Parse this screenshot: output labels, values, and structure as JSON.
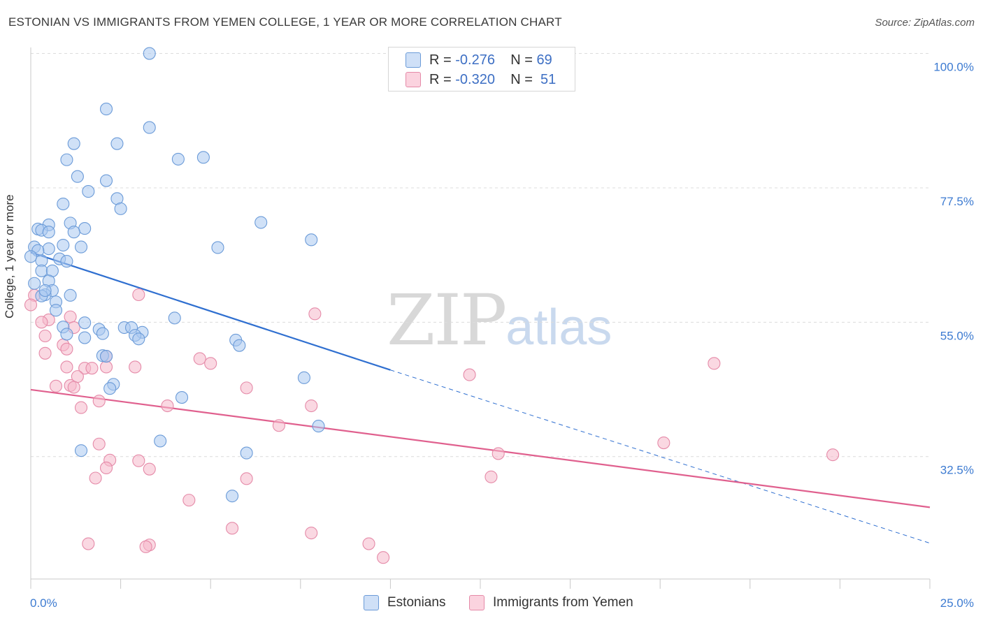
{
  "title": "ESTONIAN VS IMMIGRANTS FROM YEMEN COLLEGE, 1 YEAR OR MORE CORRELATION CHART",
  "source": "Source: ZipAtlas.com",
  "watermark": {
    "zip": "ZIP",
    "atlas": "atlas"
  },
  "legend": {
    "rows": [
      {
        "r_label": "R = ",
        "r_value": "-0.276",
        "n_label": "N = ",
        "n_value": "69",
        "color": "#aac8f0"
      },
      {
        "r_label": "R = ",
        "r_value": "-0.320",
        "n_label": "N = ",
        "n_value": "51",
        "color": "#f6b8ca"
      }
    ]
  },
  "bottom_legend": [
    "Estonians",
    "Immigrants from Yemen"
  ],
  "colors": {
    "blue_fill": "#aac8f0",
    "blue_stroke": "#6b9bd8",
    "blue_line": "#2f6fd0",
    "pink_fill": "#f6b8ca",
    "pink_stroke": "#e58aa8",
    "pink_line": "#e0608e",
    "axis_label": "#3d7bd1"
  },
  "chart_data": {
    "type": "scatter",
    "title": "ESTONIAN VS IMMIGRANTS FROM YEMEN COLLEGE, 1 YEAR OR MORE CORRELATION CHART",
    "xlabel": "",
    "ylabel": "College, 1 year or more",
    "xlim": [
      0,
      25
    ],
    "ylim": [
      12,
      101
    ],
    "x_tick_labels": [
      "0.0%",
      "25.0%"
    ],
    "y_ticks": [
      32.5,
      55.0,
      77.5,
      100.0
    ],
    "y_tick_labels": [
      "32.5%",
      "55.0%",
      "77.5%",
      "100.0%"
    ],
    "grid": true,
    "series": [
      {
        "name": "Estonians",
        "points": [
          [
            3.3,
            100
          ],
          [
            2.1,
            90.7
          ],
          [
            3.3,
            87.6
          ],
          [
            1.2,
            84.9
          ],
          [
            2.4,
            84.9
          ],
          [
            1.0,
            82.2
          ],
          [
            4.1,
            82.3
          ],
          [
            4.8,
            82.6
          ],
          [
            1.3,
            79.4
          ],
          [
            2.1,
            78.7
          ],
          [
            1.6,
            76.9
          ],
          [
            2.4,
            75.7
          ],
          [
            0.9,
            74.8
          ],
          [
            2.5,
            74.0
          ],
          [
            6.4,
            71.7
          ],
          [
            0.5,
            71.3
          ],
          [
            1.1,
            71.6
          ],
          [
            0.2,
            70.6
          ],
          [
            0.3,
            70.4
          ],
          [
            1.5,
            70.7
          ],
          [
            0.5,
            70.1
          ],
          [
            1.2,
            70.1
          ],
          [
            7.8,
            68.8
          ],
          [
            0.9,
            67.9
          ],
          [
            0.1,
            67.6
          ],
          [
            1.4,
            67.6
          ],
          [
            5.2,
            67.5
          ],
          [
            0.5,
            67.3
          ],
          [
            0.2,
            67.0
          ],
          [
            0.8,
            65.6
          ],
          [
            1.0,
            65.2
          ],
          [
            0.3,
            65.3
          ],
          [
            0.0,
            66.0
          ],
          [
            0.3,
            63.6
          ],
          [
            0.6,
            63.6
          ],
          [
            0.5,
            61.9
          ],
          [
            0.1,
            61.5
          ],
          [
            0.6,
            60.3
          ],
          [
            0.4,
            59.6
          ],
          [
            1.1,
            59.5
          ],
          [
            0.3,
            59.4
          ],
          [
            0.7,
            58.4
          ],
          [
            0.7,
            57.0
          ],
          [
            4.0,
            55.7
          ],
          [
            1.5,
            54.9
          ],
          [
            2.6,
            54.1
          ],
          [
            2.8,
            54.1
          ],
          [
            0.9,
            54.2
          ],
          [
            1.9,
            53.8
          ],
          [
            2.0,
            53.1
          ],
          [
            3.1,
            53.3
          ],
          [
            1.0,
            53.0
          ],
          [
            2.9,
            52.8
          ],
          [
            1.5,
            52.4
          ],
          [
            3.0,
            52.2
          ],
          [
            5.7,
            52.0
          ],
          [
            5.8,
            51.1
          ],
          [
            2.0,
            49.4
          ],
          [
            7.6,
            45.7
          ],
          [
            2.3,
            44.6
          ],
          [
            2.2,
            43.9
          ],
          [
            4.2,
            42.4
          ],
          [
            8.0,
            37.6
          ],
          [
            3.6,
            35.1
          ],
          [
            1.4,
            33.5
          ],
          [
            6.0,
            33.1
          ],
          [
            5.6,
            25.9
          ],
          [
            2.1,
            49.3
          ],
          [
            0.4,
            60.3
          ]
        ]
      },
      {
        "name": "Immigrants from Yemen",
        "points": [
          [
            0.1,
            59.5
          ],
          [
            0.0,
            57.9
          ],
          [
            3.0,
            59.6
          ],
          [
            7.9,
            56.4
          ],
          [
            1.1,
            55.9
          ],
          [
            0.5,
            55.4
          ],
          [
            0.3,
            55.0
          ],
          [
            1.2,
            54.1
          ],
          [
            0.4,
            52.7
          ],
          [
            0.9,
            51.2
          ],
          [
            0.4,
            49.8
          ],
          [
            1.0,
            50.5
          ],
          [
            4.7,
            48.9
          ],
          [
            5.0,
            48.1
          ],
          [
            19.0,
            48.1
          ],
          [
            2.1,
            49.3
          ],
          [
            1.0,
            47.5
          ],
          [
            2.1,
            47.5
          ],
          [
            2.9,
            47.5
          ],
          [
            1.5,
            47.3
          ],
          [
            1.7,
            47.3
          ],
          [
            12.2,
            46.2
          ],
          [
            1.3,
            45.9
          ],
          [
            0.7,
            44.3
          ],
          [
            1.1,
            44.4
          ],
          [
            1.2,
            44.1
          ],
          [
            6.0,
            44.0
          ],
          [
            1.9,
            41.8
          ],
          [
            3.8,
            41.0
          ],
          [
            7.8,
            41.0
          ],
          [
            1.4,
            40.7
          ],
          [
            6.9,
            37.7
          ],
          [
            17.6,
            34.8
          ],
          [
            1.9,
            34.6
          ],
          [
            13.0,
            33.0
          ],
          [
            22.3,
            32.8
          ],
          [
            2.2,
            31.9
          ],
          [
            3.0,
            31.8
          ],
          [
            2.1,
            30.6
          ],
          [
            3.3,
            30.4
          ],
          [
            12.8,
            29.1
          ],
          [
            1.8,
            28.9
          ],
          [
            6.0,
            28.8
          ],
          [
            4.4,
            25.2
          ],
          [
            5.6,
            20.5
          ],
          [
            7.8,
            19.7
          ],
          [
            1.6,
            17.9
          ],
          [
            3.3,
            17.7
          ],
          [
            9.4,
            17.9
          ],
          [
            3.2,
            17.4
          ],
          [
            9.8,
            15.6
          ]
        ]
      }
    ],
    "trendlines": [
      {
        "series": "Estonians",
        "solid": [
          [
            0,
            66.7
          ],
          [
            10.0,
            47.0
          ]
        ],
        "dashed": [
          [
            10.0,
            47.0
          ],
          [
            25,
            18.0
          ]
        ]
      },
      {
        "series": "Immigrants from Yemen",
        "solid": [
          [
            0,
            43.7
          ],
          [
            25,
            24.0
          ]
        ]
      }
    ]
  }
}
